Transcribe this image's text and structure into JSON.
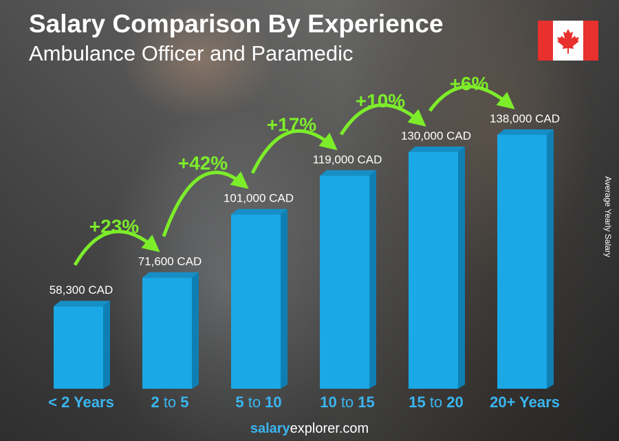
{
  "header": {
    "title": "Salary Comparison By Experience",
    "subtitle": "Ambulance Officer and Paramedic"
  },
  "flag": {
    "country": "Canada",
    "colors": {
      "red": "#e8312d",
      "white": "#ffffff"
    }
  },
  "footer": {
    "brand_bold": "salary",
    "brand_rest": "explorer.com"
  },
  "colors": {
    "bar": "#1aa8e6",
    "bar_side": "#0f7fb3",
    "bar_top": "#168fc6",
    "growth": "#7ded2a",
    "axis_label": "#3ab6f0"
  },
  "chart_data": {
    "type": "bar",
    "title": "Salary Comparison By Experience",
    "subtitle": "Ambulance Officer and Paramedic",
    "ylabel": "Average Yearly Salary",
    "xlabel": "",
    "categories": [
      "< 2 Years",
      "2 to 5",
      "5 to 10",
      "10 to 15",
      "15 to 20",
      "20+ Years"
    ],
    "values": [
      58300,
      71600,
      101000,
      119000,
      130000,
      138000
    ],
    "value_labels": [
      "58,300 CAD",
      "71,600 CAD",
      "101,000 CAD",
      "119,000 CAD",
      "130,000 CAD",
      "138,000 CAD"
    ],
    "growth_labels": [
      "+23%",
      "+42%",
      "+17%",
      "+10%",
      "+6%"
    ],
    "unit": "CAD",
    "grid": false
  }
}
